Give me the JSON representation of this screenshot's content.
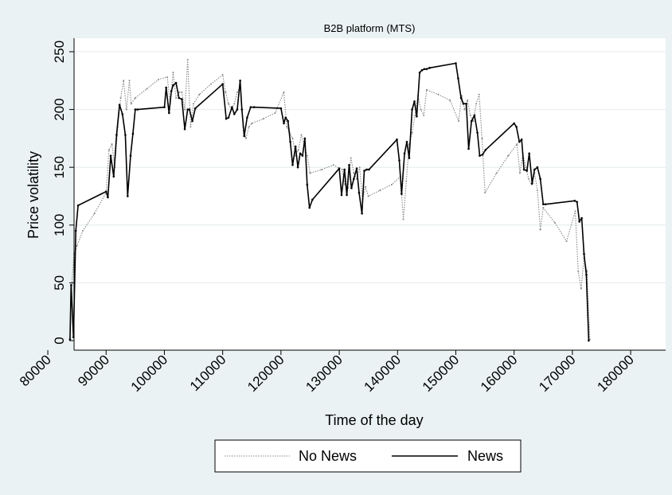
{
  "chart_data": {
    "type": "line",
    "title": "B2B platform (MTS)",
    "xlabel": "Time of the day",
    "ylabel": "Price volatility",
    "xlim": [
      80000,
      180000
    ],
    "ylim": [
      0,
      250
    ],
    "xticks": [
      80000,
      90000,
      100000,
      110000,
      120000,
      130000,
      140000,
      150000,
      160000,
      170000,
      180000
    ],
    "yticks": [
      0,
      50,
      100,
      150,
      200,
      250
    ],
    "grid": true,
    "legend_position": "bottom",
    "series": [
      {
        "name": "No News",
        "style": "dotted",
        "color": "#888888",
        "x": [
          83800,
          84000,
          84500,
          85000,
          86000,
          88000,
          90000,
          90500,
          91000,
          91500,
          92000,
          92500,
          93000,
          93500,
          94000,
          94300,
          95000,
          97000,
          99000,
          100500,
          101000,
          101500,
          102000,
          102500,
          103000,
          103500,
          104000,
          104500,
          105000,
          106000,
          108000,
          110000,
          110500,
          111000,
          111500,
          112000,
          112500,
          113000,
          113500,
          114000,
          114500,
          115000,
          117000,
          119000,
          120500,
          121000,
          121500,
          122000,
          122500,
          123000,
          123500,
          124000,
          124500,
          125000,
          127000,
          129000,
          130500,
          131000,
          131500,
          132000,
          132500,
          133000,
          133500,
          134000,
          134500,
          135000,
          137000,
          139000,
          140500,
          141000,
          141500,
          142000,
          142500,
          143000,
          143500,
          144000,
          144500,
          145000,
          147000,
          149000,
          150500,
          151000,
          151500,
          152000,
          152500,
          153000,
          153500,
          154000,
          154500,
          155000,
          157000,
          159000,
          160500,
          161000,
          161500,
          162000,
          162500,
          163000,
          163500,
          164000,
          164500,
          165000,
          167000,
          169000,
          170500,
          171000,
          171500,
          172000,
          172500,
          173000
        ],
        "values": [
          1,
          40,
          75,
          82,
          95,
          110,
          128,
          165,
          170,
          150,
          185,
          210,
          225,
          200,
          225,
          205,
          210,
          218,
          226,
          228,
          205,
          232,
          210,
          215,
          215,
          200,
          243,
          185,
          205,
          213,
          222,
          230,
          215,
          205,
          200,
          205,
          215,
          220,
          185,
          175,
          185,
          188,
          192,
          197,
          215,
          185,
          180,
          175,
          160,
          165,
          178,
          170,
          160,
          145,
          148,
          152,
          148,
          135,
          132,
          158,
          145,
          140,
          150,
          122,
          133,
          125,
          130,
          135,
          142,
          105,
          138,
          170,
          180,
          195,
          212,
          200,
          195,
          217,
          213,
          208,
          190,
          212,
          200,
          208,
          195,
          190,
          205,
          213,
          175,
          128,
          145,
          160,
          170,
          145,
          162,
          150,
          140,
          135,
          145,
          130,
          96,
          115,
          102,
          86,
          112,
          60,
          45,
          72,
          60,
          1
        ]
      },
      {
        "name": "News",
        "style": "solid",
        "color": "#000000",
        "x": [
          83800,
          84000,
          84400,
          84800,
          85200,
          90000,
          90300,
          90800,
          91300,
          91800,
          92300,
          92800,
          93300,
          93700,
          94200,
          94600,
          95000,
          95400,
          100000,
          100300,
          100800,
          101200,
          101500,
          102000,
          102500,
          103000,
          103500,
          104000,
          104300,
          104800,
          105300,
          110000,
          110600,
          111000,
          111600,
          112000,
          112500,
          113000,
          113300,
          113700,
          114200,
          114800,
          115400,
          120000,
          120500,
          120800,
          121200,
          121600,
          122000,
          122500,
          122900,
          123300,
          123700,
          124100,
          124500,
          124900,
          125400,
          130000,
          130400,
          130900,
          131300,
          131700,
          132100,
          132500,
          133000,
          133400,
          133900,
          134300,
          134700,
          135100,
          139900,
          140300,
          140700,
          141200,
          141600,
          142000,
          142500,
          142900,
          143300,
          143800,
          144200,
          144600,
          145000,
          145500,
          150000,
          150400,
          150900,
          151300,
          151800,
          152200,
          152700,
          153200,
          153700,
          154100,
          154600,
          155100,
          160000,
          160400,
          160900,
          161300,
          161700,
          162200,
          162600,
          163100,
          163500,
          164000,
          164500,
          165000,
          165400,
          170400,
          170800,
          171200,
          171600,
          172000,
          172400,
          172800
        ],
        "values": [
          1,
          48,
          3,
          95,
          117,
          129,
          124,
          160,
          142,
          178,
          204,
          196,
          178,
          125,
          160,
          179,
          200,
          200,
          202,
          219,
          197,
          216,
          221,
          223,
          210,
          209,
          183,
          200,
          200,
          190,
          201,
          222,
          192,
          193,
          202,
          196,
          200,
          225,
          200,
          177,
          193,
          202,
          202,
          201,
          188,
          193,
          190,
          172,
          152,
          168,
          150,
          162,
          160,
          175,
          135,
          115,
          122,
          149,
          126,
          148,
          126,
          152,
          132,
          140,
          149,
          128,
          110,
          147,
          148,
          148,
          174,
          156,
          127,
          162,
          172,
          158,
          200,
          207,
          194,
          232,
          234,
          235,
          235,
          236,
          240,
          227,
          210,
          205,
          205,
          166,
          190,
          195,
          180,
          160,
          161,
          165,
          188,
          185,
          172,
          174,
          148,
          147,
          162,
          136,
          148,
          150,
          140,
          118,
          118,
          121,
          120,
          103,
          106,
          75,
          57,
          0
        ]
      }
    ]
  }
}
